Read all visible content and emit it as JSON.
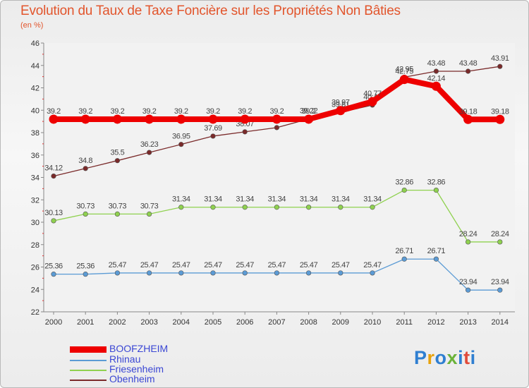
{
  "title": "Evolution du Taux de Taxe Foncière sur les Propriétés Non Bâties",
  "unit_label": "(en %)",
  "logo": {
    "text": "Proxiti",
    "colors": [
      "#2f7fd1",
      "#e8a20c",
      "#2f7fd1",
      "#6bb33a",
      "#2f7fd1",
      "#e14b3b",
      "#2f7fd1"
    ]
  },
  "chart_data": {
    "type": "line",
    "title": "Evolution du Taux de Taxe Foncière sur les Propriétés Non Bâties",
    "ylabel": "(en %)",
    "xlabel": "",
    "ylim": [
      22,
      46
    ],
    "yticks": [
      22,
      24,
      26,
      28,
      30,
      32,
      34,
      36,
      38,
      40,
      42,
      44,
      46
    ],
    "x": [
      "2000",
      "2001",
      "2002",
      "2003",
      "2004",
      "2005",
      "2006",
      "2007",
      "2008",
      "2009",
      "2010",
      "2011",
      "2012",
      "2013",
      "2014"
    ],
    "series": [
      {
        "name": "Obenheim",
        "color": "#7a2a2a",
        "thick": false,
        "values": [
          34.12,
          34.8,
          35.5,
          36.23,
          36.95,
          37.69,
          38.07,
          38.45,
          39.22,
          39.81,
          40.46,
          42.95,
          43.48,
          43.48,
          43.91
        ],
        "labels": [
          "34.12",
          "34.8",
          "35.5",
          "36.23",
          "36.95",
          "37.69",
          "38.07",
          "38.45",
          "39.22",
          "39.81",
          "40.46",
          "42.95",
          "43.48",
          "43.48",
          "43.91"
        ]
      },
      {
        "name": "Friesenheim",
        "color": "#8fd14f",
        "thick": false,
        "values": [
          30.13,
          30.73,
          30.73,
          30.73,
          31.34,
          31.34,
          31.34,
          31.34,
          31.34,
          31.34,
          31.34,
          32.86,
          32.86,
          28.24,
          28.24
        ],
        "labels": [
          "30.13",
          "30.73",
          "30.73",
          "30.73",
          "31.34",
          "31.34",
          "31.34",
          "31.34",
          "31.34",
          "31.34",
          "31.34",
          "32.86",
          "32.86",
          "28.24",
          "28.24"
        ]
      },
      {
        "name": "Rhinau",
        "color": "#5b9bd5",
        "thick": false,
        "values": [
          25.36,
          25.36,
          25.47,
          25.47,
          25.47,
          25.47,
          25.47,
          25.47,
          25.47,
          25.47,
          25.47,
          26.71,
          26.71,
          23.94,
          23.94
        ],
        "labels": [
          "25.36",
          "25.36",
          "25.47",
          "25.47",
          "25.47",
          "25.47",
          "25.47",
          "25.47",
          "25.47",
          "25.47",
          "25.47",
          "26.71",
          "26.71",
          "23.94",
          "23.94"
        ]
      },
      {
        "name": "BOOFZHEIM",
        "color": "#ee0000",
        "thick": true,
        "values": [
          39.2,
          39.2,
          39.2,
          39.2,
          39.2,
          39.2,
          39.2,
          39.2,
          39.2,
          39.97,
          40.77,
          42.75,
          42.14,
          39.18,
          39.18
        ],
        "labels": [
          "39.2",
          "39.2",
          "39.2",
          "39.2",
          "39.2",
          "39.2",
          "39.2",
          "39.2",
          "39.2",
          "39.97",
          "40.77",
          "42.75",
          "42.14",
          "39.18",
          "39.18"
        ]
      }
    ],
    "legend_order": [
      "BOOFZHEIM",
      "Rhinau",
      "Friesenheim",
      "Obenheim"
    ],
    "legend_position": "bottom-left",
    "grid": false
  }
}
